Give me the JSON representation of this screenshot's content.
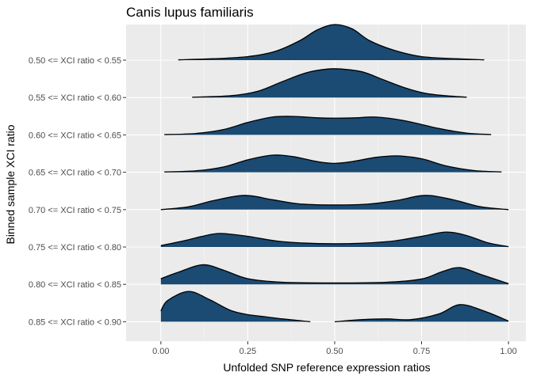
{
  "chart_data": {
    "type": "ridgeline",
    "title": "Canis lupus familiaris",
    "xlabel": "Unfolded SNP reference expression ratios",
    "ylabel": "Binned sample XCI ratio",
    "xlim": [
      -0.1,
      1.05
    ],
    "x_ticks": [
      {
        "value": 0.0,
        "label": "0.00"
      },
      {
        "value": 0.25,
        "label": "0.25"
      },
      {
        "value": 0.5,
        "label": "0.50"
      },
      {
        "value": 0.75,
        "label": "0.75"
      },
      {
        "value": 1.0,
        "label": "1.00"
      }
    ],
    "fill_color": "#1b4a72",
    "outline_color": "#000000",
    "panel_background": "#ebebeb",
    "grid": true,
    "ridges": [
      {
        "label": "0.50 <= XCI ratio < 0.55",
        "x": [
          0.05,
          0.15,
          0.25,
          0.33,
          0.4,
          0.45,
          0.5,
          0.55,
          0.6,
          0.67,
          0.75,
          0.85,
          0.93
        ],
        "density": [
          0.01,
          0.04,
          0.1,
          0.25,
          0.55,
          0.85,
          1.0,
          0.88,
          0.55,
          0.28,
          0.1,
          0.04,
          0.01
        ]
      },
      {
        "label": "0.55 <= XCI ratio < 0.60",
        "x": [
          0.09,
          0.2,
          0.28,
          0.35,
          0.42,
          0.48,
          0.52,
          0.58,
          0.64,
          0.7,
          0.76,
          0.82,
          0.88
        ],
        "density": [
          0.01,
          0.05,
          0.18,
          0.45,
          0.7,
          0.8,
          0.8,
          0.72,
          0.5,
          0.28,
          0.12,
          0.05,
          0.01
        ]
      },
      {
        "label": "0.60 <= XCI ratio < 0.65",
        "x": [
          0.01,
          0.1,
          0.18,
          0.25,
          0.32,
          0.38,
          0.45,
          0.5,
          0.56,
          0.62,
          0.7,
          0.8,
          0.88,
          0.95
        ],
        "density": [
          0.01,
          0.04,
          0.15,
          0.35,
          0.5,
          0.52,
          0.48,
          0.47,
          0.48,
          0.5,
          0.4,
          0.18,
          0.05,
          0.01
        ]
      },
      {
        "label": "0.65 <= XCI ratio < 0.70",
        "x": [
          0.01,
          0.1,
          0.18,
          0.25,
          0.32,
          0.38,
          0.45,
          0.5,
          0.55,
          0.62,
          0.68,
          0.75,
          0.82,
          0.9,
          0.98
        ],
        "density": [
          0.01,
          0.04,
          0.15,
          0.35,
          0.48,
          0.44,
          0.3,
          0.25,
          0.3,
          0.42,
          0.46,
          0.38,
          0.18,
          0.05,
          0.01
        ]
      },
      {
        "label": "0.70 <= XCI ratio < 0.75",
        "x": [
          0.0,
          0.08,
          0.15,
          0.24,
          0.32,
          0.4,
          0.5,
          0.6,
          0.68,
          0.76,
          0.84,
          0.92,
          1.0
        ],
        "density": [
          0.0,
          0.08,
          0.25,
          0.4,
          0.28,
          0.16,
          0.13,
          0.16,
          0.26,
          0.4,
          0.28,
          0.08,
          0.0
        ]
      },
      {
        "label": "0.75 <= XCI ratio < 0.80",
        "x": [
          0.0,
          0.06,
          0.12,
          0.17,
          0.25,
          0.35,
          0.5,
          0.65,
          0.75,
          0.82,
          0.88,
          0.94,
          1.0
        ],
        "density": [
          0.04,
          0.16,
          0.3,
          0.38,
          0.3,
          0.15,
          0.09,
          0.15,
          0.3,
          0.42,
          0.32,
          0.12,
          0.01
        ]
      },
      {
        "label": "0.80 <= XCI ratio < 0.85",
        "x": [
          0.0,
          0.05,
          0.12,
          0.18,
          0.25,
          0.35,
          0.5,
          0.65,
          0.75,
          0.81,
          0.86,
          0.92,
          1.0
        ],
        "density": [
          0.16,
          0.34,
          0.55,
          0.4,
          0.16,
          0.06,
          0.04,
          0.06,
          0.15,
          0.36,
          0.47,
          0.28,
          0.02
        ]
      },
      {
        "label": "0.85 <= XCI ratio < 0.90",
        "x": [
          0.0,
          0.02,
          0.08,
          0.14,
          0.2,
          0.25,
          0.3,
          0.35,
          0.43,
          null,
          0.5,
          0.58,
          0.65,
          0.72,
          0.8,
          0.86,
          0.93,
          1.0
        ],
        "density": [
          0.3,
          0.6,
          0.85,
          0.62,
          0.32,
          0.2,
          0.14,
          0.08,
          0.0,
          null,
          0.0,
          0.06,
          0.08,
          0.06,
          0.22,
          0.48,
          0.3,
          0.02
        ]
      }
    ]
  }
}
